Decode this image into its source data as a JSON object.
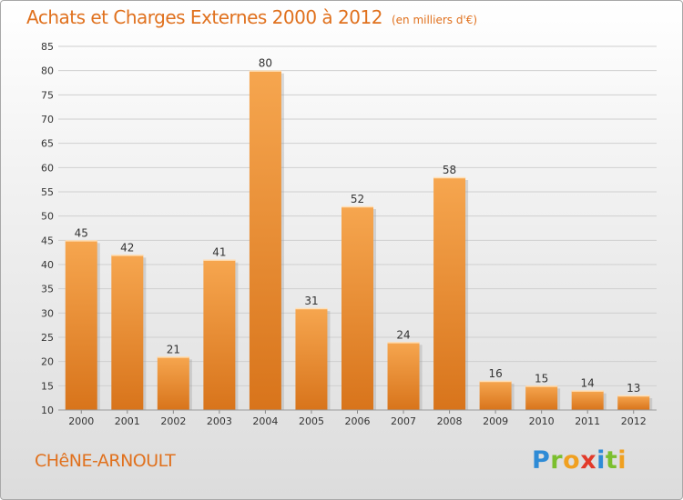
{
  "header": {
    "title": "Achats et Charges Externes 2000 à 2012",
    "unit": "(en milliers d'€)"
  },
  "footer": {
    "town": "CHêNE-ARNOULT",
    "logo_letters": [
      {
        "ch": "P",
        "color": "#2e8bd6"
      },
      {
        "ch": "r",
        "color": "#7bbf2e"
      },
      {
        "ch": "o",
        "color": "#f0a020"
      },
      {
        "ch": "x",
        "color": "#e23a2a"
      },
      {
        "ch": "i",
        "color": "#2e8bd6"
      },
      {
        "ch": "t",
        "color": "#7bbf2e"
      },
      {
        "ch": "i",
        "color": "#f0a020"
      }
    ]
  },
  "colors": {
    "accent": "#e0711e",
    "bar_light": "#f6a64f",
    "bar_dark": "#d8741b",
    "grid": "#cfcfcf",
    "axis_text": "#333333"
  },
  "chart_data": {
    "type": "bar",
    "categories": [
      "2000",
      "2001",
      "2002",
      "2003",
      "2004",
      "2005",
      "2006",
      "2007",
      "2008",
      "2009",
      "2010",
      "2011",
      "2012"
    ],
    "values": [
      45,
      42,
      21,
      41,
      80,
      31,
      52,
      24,
      58,
      16,
      15,
      14,
      13
    ],
    "data_labels": [
      "45",
      "42",
      "21",
      "41",
      "80",
      "31",
      "52",
      "24",
      "58",
      "16",
      "15",
      "14",
      "13"
    ],
    "ylim": [
      10,
      85
    ],
    "yticks": [
      10,
      15,
      20,
      25,
      30,
      35,
      40,
      45,
      50,
      55,
      60,
      65,
      70,
      75,
      80,
      85
    ],
    "grid": true,
    "legend": "none"
  }
}
